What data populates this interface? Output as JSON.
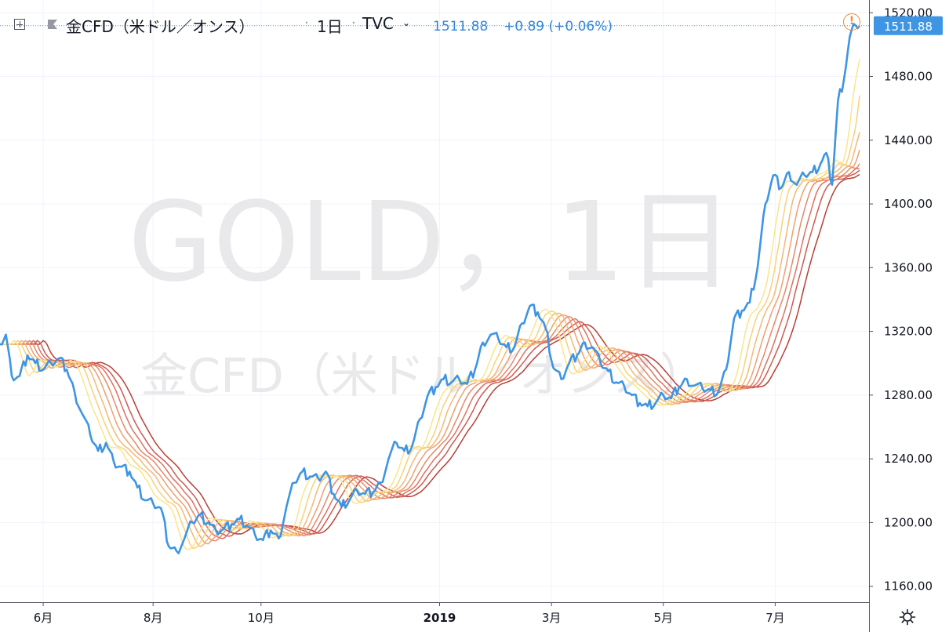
{
  "header": {
    "symbol_title": "金CFD（米ドル／オンス）",
    "interval": "1日",
    "exchange": "TVC",
    "price": "1511.88",
    "change": "+0.89 (+0.06%)"
  },
  "watermark": {
    "line1": "GOLD，1日",
    "line2": "金CFD（米ドル／オンス）"
  },
  "price_axis": {
    "last_price_label": "1511.88"
  },
  "colors": {
    "price_line": "#3d95e3",
    "ma_ribbon": [
      "#fbe58a",
      "#f8d17a",
      "#f3b975",
      "#eea071",
      "#e6896b",
      "#dc7262",
      "#cf5a52",
      "#b83f35"
    ],
    "axis_text": "#131722",
    "alert": "#f08a3c"
  },
  "chart_data": {
    "type": "line",
    "title": "GOLD，1日",
    "subtitle": "金CFD（米ドル／オンス）",
    "xlabel": "",
    "ylabel": "",
    "ylim": [
      1150,
      1528
    ],
    "xlim": [
      0,
      438
    ],
    "grid": true,
    "y_ticks": [
      1160,
      1200,
      1240,
      1280,
      1320,
      1360,
      1400,
      1440,
      1480,
      1520
    ],
    "y_tick_labels": [
      "1160.00",
      "1200.00",
      "1240.00",
      "1280.00",
      "1320.00",
      "1360.00",
      "1400.00",
      "1440.00",
      "1480.00",
      "1520.00"
    ],
    "x_ticks": [
      {
        "label": "6月",
        "x": 22
      },
      {
        "label": "8月",
        "x": 78
      },
      {
        "label": "10月",
        "x": 133
      },
      {
        "label": "2019",
        "x": 224
      },
      {
        "label": "3月",
        "x": 281
      },
      {
        "label": "5月",
        "x": 338
      },
      {
        "label": "7月",
        "x": 395
      }
    ],
    "last_value": 1511.88,
    "series": [
      {
        "kind": "price",
        "anchors": [
          [
            0,
            1312
          ],
          [
            3,
            1318
          ],
          [
            6,
            1292
          ],
          [
            10,
            1292
          ],
          [
            14,
            1305
          ],
          [
            18,
            1300
          ],
          [
            22,
            1296
          ],
          [
            26,
            1300
          ],
          [
            30,
            1303
          ],
          [
            34,
            1296
          ],
          [
            38,
            1282
          ],
          [
            42,
            1268
          ],
          [
            46,
            1255
          ],
          [
            50,
            1245
          ],
          [
            54,
            1250
          ],
          [
            58,
            1238
          ],
          [
            62,
            1235
          ],
          [
            66,
            1232
          ],
          [
            70,
            1222
          ],
          [
            74,
            1214
          ],
          [
            78,
            1212
          ],
          [
            82,
            1209
          ],
          [
            86,
            1185
          ],
          [
            90,
            1182
          ],
          [
            94,
            1190
          ],
          [
            98,
            1200
          ],
          [
            102,
            1205
          ],
          [
            106,
            1200
          ],
          [
            110,
            1195
          ],
          [
            114,
            1196
          ],
          [
            118,
            1199
          ],
          [
            122,
            1202
          ],
          [
            126,
            1198
          ],
          [
            130,
            1192
          ],
          [
            134,
            1189
          ],
          [
            138,
            1195
          ],
          [
            142,
            1190
          ],
          [
            146,
            1210
          ],
          [
            150,
            1225
          ],
          [
            154,
            1232
          ],
          [
            158,
            1229
          ],
          [
            162,
            1228
          ],
          [
            166,
            1232
          ],
          [
            170,
            1218
          ],
          [
            174,
            1210
          ],
          [
            178,
            1214
          ],
          [
            182,
            1220
          ],
          [
            186,
            1218
          ],
          [
            190,
            1219
          ],
          [
            194,
            1225
          ],
          [
            198,
            1240
          ],
          [
            202,
            1250
          ],
          [
            206,
            1245
          ],
          [
            210,
            1248
          ],
          [
            214,
            1265
          ],
          [
            218,
            1280
          ],
          [
            222,
            1285
          ],
          [
            226,
            1290
          ],
          [
            230,
            1288
          ],
          [
            234,
            1290
          ],
          [
            238,
            1287
          ],
          [
            242,
            1296
          ],
          [
            246,
            1313
          ],
          [
            250,
            1318
          ],
          [
            254,
            1315
          ],
          [
            258,
            1310
          ],
          [
            262,
            1310
          ],
          [
            266,
            1325
          ],
          [
            270,
            1336
          ],
          [
            274,
            1332
          ],
          [
            278,
            1322
          ],
          [
            282,
            1297
          ],
          [
            286,
            1290
          ],
          [
            290,
            1300
          ],
          [
            294,
            1305
          ],
          [
            298,
            1313
          ],
          [
            302,
            1310
          ],
          [
            306,
            1300
          ],
          [
            310,
            1295
          ],
          [
            314,
            1288
          ],
          [
            318,
            1286
          ],
          [
            322,
            1280
          ],
          [
            326,
            1275
          ],
          [
            330,
            1273
          ],
          [
            334,
            1275
          ],
          [
            338,
            1280
          ],
          [
            342,
            1278
          ],
          [
            346,
            1285
          ],
          [
            350,
            1290
          ],
          [
            354,
            1286
          ],
          [
            358,
            1284
          ],
          [
            362,
            1283
          ],
          [
            366,
            1282
          ],
          [
            370,
            1296
          ],
          [
            374,
            1328
          ],
          [
            378,
            1333
          ],
          [
            382,
            1338
          ],
          [
            386,
            1360
          ],
          [
            390,
            1400
          ],
          [
            394,
            1418
          ],
          [
            398,
            1410
          ],
          [
            402,
            1420
          ],
          [
            406,
            1412
          ],
          [
            410,
            1418
          ],
          [
            414,
            1420
          ],
          [
            418,
            1425
          ],
          [
            421,
            1432
          ],
          [
            424,
            1412
          ],
          [
            427,
            1465
          ],
          [
            430,
            1478
          ],
          [
            433,
            1505
          ],
          [
            436,
            1512
          ],
          [
            438,
            1511.88
          ]
        ]
      },
      {
        "kind": "ma",
        "lag": 4,
        "smooth": 6
      },
      {
        "kind": "ma",
        "lag": 6,
        "smooth": 8
      },
      {
        "kind": "ma",
        "lag": 8,
        "smooth": 10
      },
      {
        "kind": "ma",
        "lag": 10,
        "smooth": 12
      },
      {
        "kind": "ma",
        "lag": 12,
        "smooth": 14
      },
      {
        "kind": "ma",
        "lag": 14,
        "smooth": 16
      },
      {
        "kind": "ma",
        "lag": 16,
        "smooth": 18
      },
      {
        "kind": "ma",
        "lag": 19,
        "smooth": 20
      }
    ]
  }
}
